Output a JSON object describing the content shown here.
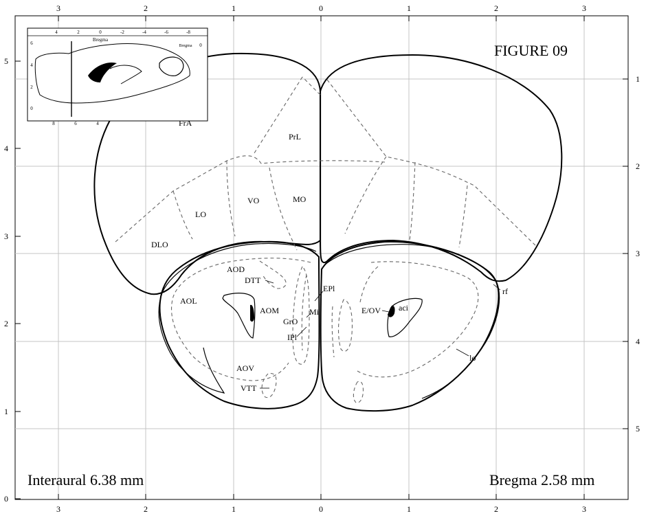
{
  "figure": {
    "title": "FIGURE 09",
    "interaural": "Interaural 6.38 mm",
    "bregma": "Bregma 2.58 mm"
  },
  "axes": {
    "top_labels": [
      "3",
      "2",
      "1",
      "0",
      "1",
      "2",
      "3"
    ],
    "bottom_labels": [
      "3",
      "2",
      "1",
      "0",
      "1",
      "2",
      "3"
    ],
    "left_labels": [
      "5",
      "4",
      "3",
      "2",
      "1",
      "0"
    ],
    "right_labels": [
      "1",
      "2",
      "3",
      "4",
      "5"
    ]
  },
  "inset": {
    "title": "Bregma",
    "top_labels": [
      "4",
      "2",
      "0",
      "-2",
      "-4",
      "-6",
      "-8"
    ],
    "bottom_labels": [
      "8",
      "6",
      "4"
    ],
    "left_labels": [
      "6",
      "4",
      "2",
      "0"
    ],
    "corner_label": "Bregma",
    "corner_value": "0"
  },
  "regions": {
    "fra": "FrA",
    "prl": "PrL",
    "lo": "LO",
    "vo": "VO",
    "mo": "MO",
    "dlo": "DLO",
    "aod": "AOD",
    "dtt": "DTT",
    "epl": "EPl",
    "aol": "AOL",
    "aom": "AOM",
    "mi": "Mi",
    "gro": "GrO",
    "ipl": "IPl",
    "e_ov": "E/OV",
    "aci": "aci",
    "rf": "rf",
    "aov": "AOV",
    "vtt": "VTT",
    "lo_tract": "lo"
  }
}
